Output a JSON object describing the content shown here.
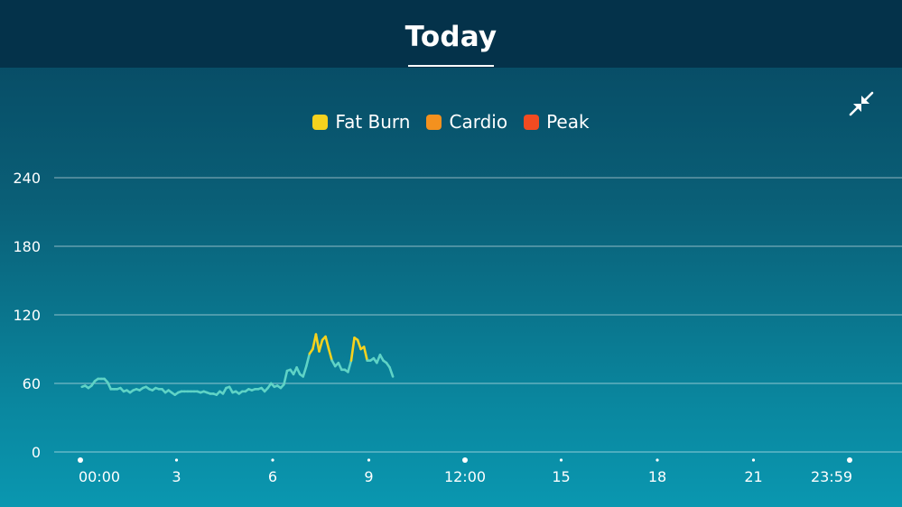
{
  "header": {
    "title": "Today"
  },
  "controls": {
    "collapse_icon": "collapse-arrows-icon"
  },
  "legend": [
    {
      "label": "Fat Burn",
      "color": "#f6d21e"
    },
    {
      "label": "Cardio",
      "color": "#f4911e"
    },
    {
      "label": "Peak",
      "color": "#f24b21"
    }
  ],
  "chart_data": {
    "type": "line",
    "ylim": [
      0,
      240
    ],
    "yticks": [
      0,
      60,
      120,
      180,
      240
    ],
    "xlim": [
      0,
      24
    ],
    "xticks": [
      {
        "value": 0,
        "label": "00:00"
      },
      {
        "value": 3,
        "label": "3"
      },
      {
        "value": 6,
        "label": "6"
      },
      {
        "value": 9,
        "label": "9"
      },
      {
        "value": 12,
        "label": "12:00"
      },
      {
        "value": 15,
        "label": "15"
      },
      {
        "value": 18,
        "label": "18"
      },
      {
        "value": 21,
        "label": "21"
      },
      {
        "value": 24,
        "label": "23:59"
      }
    ],
    "zone_thresholds": {
      "fat_burn": 84,
      "cardio": 118,
      "peak": 143
    },
    "line_colors": {
      "normal": "#5fd3c6",
      "fat_burn": "#f6d21e",
      "cardio": "#f4911e",
      "peak": "#f24b21"
    },
    "series": [
      {
        "x": [
          0.05,
          0.15,
          0.25,
          0.35,
          0.45,
          0.55,
          0.65,
          0.75,
          0.85,
          0.95,
          1.05,
          1.15,
          1.25,
          1.35,
          1.45,
          1.55,
          1.65,
          1.75,
          1.85,
          1.95,
          2.05,
          2.15,
          2.25,
          2.35,
          2.45,
          2.55,
          2.65,
          2.75,
          2.85,
          2.95,
          3.05,
          3.15,
          3.25,
          3.35,
          3.45,
          3.55,
          3.65,
          3.75,
          3.85,
          3.95,
          4.05,
          4.15,
          4.25,
          4.35,
          4.45,
          4.55,
          4.65,
          4.75,
          4.85,
          4.95,
          5.05,
          5.15,
          5.25,
          5.35,
          5.45,
          5.55,
          5.65,
          5.75,
          5.85,
          5.95,
          6.05,
          6.15,
          6.25,
          6.35,
          6.45,
          6.55,
          6.65,
          6.75,
          6.85,
          6.95,
          7.05,
          7.15,
          7.25,
          7.35,
          7.45,
          7.55,
          7.65,
          7.75,
          7.85,
          7.95,
          8.05,
          8.15,
          8.25,
          8.35,
          8.45,
          8.55,
          8.65,
          8.75,
          8.85,
          8.95,
          9.05,
          9.15,
          9.25,
          9.35,
          9.45,
          9.55,
          9.65,
          9.75
        ],
        "y": [
          57,
          58,
          56,
          58,
          62,
          64,
          64,
          64,
          61,
          55,
          55,
          55,
          56,
          53,
          54,
          52,
          54,
          55,
          54,
          56,
          57,
          55,
          54,
          56,
          55,
          55,
          52,
          54,
          52,
          50,
          52,
          53,
          53,
          53,
          53,
          53,
          53,
          52,
          53,
          52,
          51,
          51,
          50,
          53,
          51,
          56,
          57,
          52,
          53,
          51,
          53,
          53,
          55,
          54,
          55,
          55,
          56,
          53,
          56,
          60,
          57,
          58,
          56,
          59,
          71,
          72,
          68,
          74,
          68,
          66,
          75,
          86,
          90,
          103,
          88,
          98,
          101,
          90,
          80,
          75,
          78,
          72,
          72,
          70,
          80,
          100,
          98,
          90,
          92,
          80,
          80,
          82,
          78,
          85,
          80,
          78,
          74,
          66
        ]
      }
    ]
  }
}
